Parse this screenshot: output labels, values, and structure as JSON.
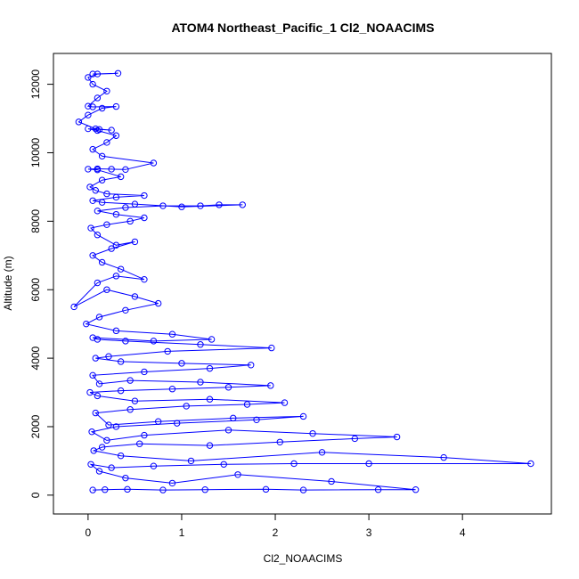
{
  "chart_data": {
    "type": "scatter",
    "title": "ATOM4 Northeast_Pacific_1 Cl2_NOAACIMS",
    "xlabel": "Cl2_NOAACIMS",
    "ylabel": "Altitude (m)",
    "xlim": [
      -0.37,
      4.95
    ],
    "ylim": [
      -550,
      12900
    ],
    "xticks": [
      0,
      1,
      2,
      3,
      4
    ],
    "yticks": [
      0,
      2000,
      4000,
      6000,
      8000,
      10000,
      12000
    ],
    "grid": false,
    "legend": "none",
    "marker": "open-circle",
    "connected": true,
    "color": "#0000ff",
    "series": [
      {
        "x": [
          0.05,
          0.18,
          0.42,
          0.8,
          1.25,
          1.9,
          2.3,
          3.1,
          3.5,
          2.6,
          1.6,
          0.9,
          0.4,
          0.12,
          0.03,
          0.25,
          0.7,
          1.45,
          2.2,
          3.0,
          4.73,
          3.8,
          2.5,
          1.1,
          0.35,
          0.06,
          0.15,
          0.55,
          1.3,
          2.05,
          2.85,
          3.3,
          2.4,
          1.5,
          0.6,
          0.2,
          0.04,
          0.3,
          0.95,
          1.8,
          2.3,
          1.55,
          0.75,
          0.22,
          0.08,
          0.45,
          1.05,
          1.7,
          2.1,
          1.3,
          0.5,
          0.1,
          0.02,
          0.35,
          0.9,
          1.5,
          1.95,
          1.2,
          0.45,
          0.12,
          0.05,
          0.6,
          1.3,
          1.74,
          1.0,
          0.35,
          0.08,
          0.22,
          0.85,
          1.96,
          1.2,
          0.4,
          0.1,
          0.05,
          0.7,
          1.32,
          0.9,
          0.3,
          -0.02,
          0.12,
          0.4,
          0.75,
          0.5,
          0.2,
          -0.15,
          0.1,
          0.3,
          0.6,
          0.35,
          0.15,
          0.05,
          0.25,
          0.5,
          0.3,
          0.1,
          0.03,
          0.2,
          0.45,
          0.6,
          0.3,
          0.1,
          0.4,
          0.8,
          1.2,
          1.4,
          1.65,
          1.0,
          0.5,
          0.15,
          0.05,
          0.3,
          0.6,
          0.2,
          0.08,
          0.02,
          0.15,
          0.35,
          0.1,
          0.0,
          0.1,
          0.25,
          0.4,
          0.7,
          0.15,
          0.05,
          0.2,
          0.3,
          0.1,
          0.0,
          0.12,
          0.25,
          0.08,
          -0.1,
          0.0,
          0.15,
          0.3,
          0.05,
          0.0,
          0.1,
          0.2,
          0.05,
          0.0,
          0.1,
          0.32,
          0.05
        ],
        "y": [
          150,
          160,
          170,
          150,
          160,
          170,
          150,
          160,
          160,
          400,
          600,
          350,
          500,
          700,
          900,
          800,
          850,
          900,
          920,
          920,
          920,
          1100,
          1250,
          1000,
          1150,
          1300,
          1400,
          1500,
          1450,
          1550,
          1650,
          1700,
          1800,
          1900,
          1750,
          1600,
          1850,
          2000,
          2100,
          2200,
          2300,
          2250,
          2150,
          2050,
          2400,
          2500,
          2600,
          2650,
          2700,
          2800,
          2750,
          2900,
          3000,
          3050,
          3100,
          3150,
          3200,
          3300,
          3350,
          3250,
          3500,
          3600,
          3700,
          3800,
          3850,
          3900,
          4000,
          4050,
          4200,
          4300,
          4400,
          4500,
          4550,
          4600,
          4500,
          4550,
          4700,
          4800,
          5000,
          5200,
          5400,
          5600,
          5800,
          6000,
          5500,
          6200,
          6400,
          6300,
          6600,
          6800,
          7000,
          7200,
          7400,
          7300,
          7600,
          7800,
          7900,
          8000,
          8100,
          8200,
          8300,
          8400,
          8450,
          8450,
          8480,
          8480,
          8420,
          8500,
          8550,
          8600,
          8700,
          8750,
          8800,
          8900,
          9000,
          9200,
          9300,
          9500,
          9520,
          9530,
          9520,
          9510,
          9700,
          9900,
          10100,
          10300,
          10500,
          10650,
          10700,
          10680,
          10660,
          10700,
          10900,
          11100,
          11300,
          11350,
          11340,
          11360,
          11600,
          11800,
          12000,
          12200,
          12300,
          12320,
          12300
        ]
      }
    ]
  }
}
